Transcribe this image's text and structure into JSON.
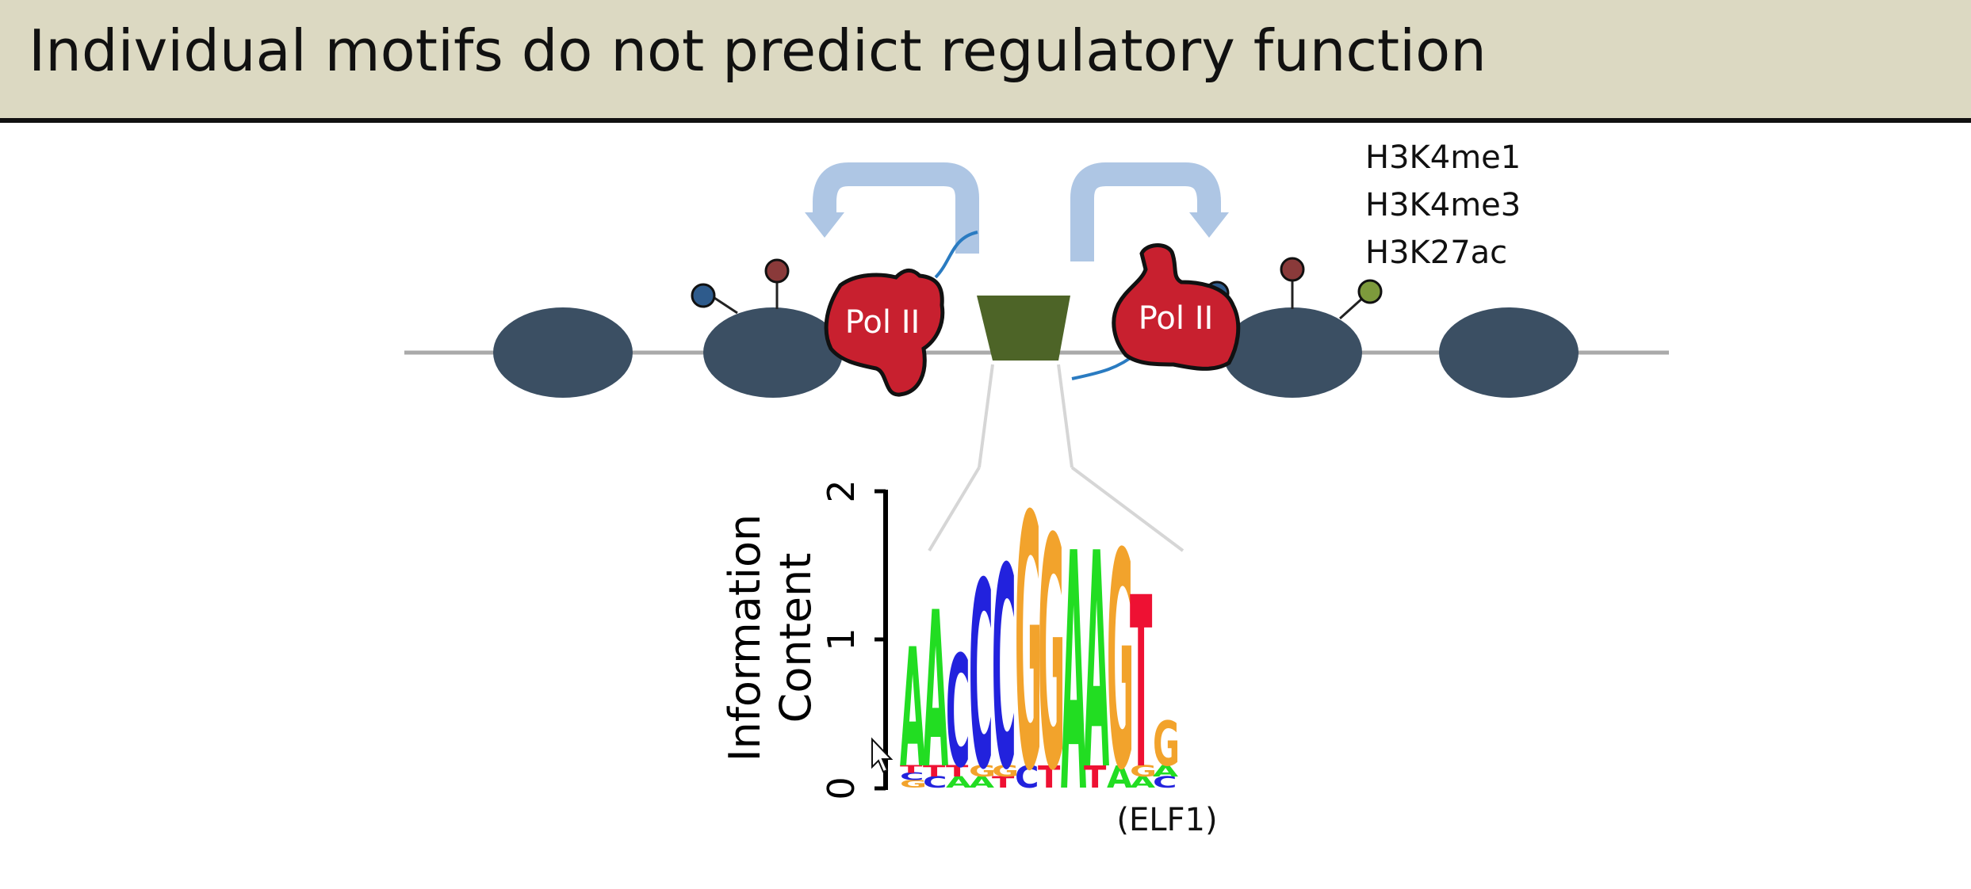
{
  "title": "Individual motifs do not predict regulatory function",
  "histone_marks": [
    "H3K4me1",
    "H3K4me3",
    "H3K27ac"
  ],
  "pol2_label": "Pol II",
  "motif_logo": {
    "y_axis_label_line1": "Information",
    "y_axis_label_line2": "Content",
    "y_ticks": [
      "0",
      "1",
      "2"
    ],
    "ymax": 2,
    "motif_name": "(ELF1)",
    "consensus": "AACCCGGAAGTG",
    "positions": [
      {
        "main": "A",
        "height": 0.95,
        "minor": [
          "T",
          "C",
          "G"
        ]
      },
      {
        "main": "A",
        "height": 1.2,
        "minor": [
          "T",
          "C"
        ]
      },
      {
        "main": "C",
        "height": 0.9,
        "minor": [
          "T",
          "A"
        ]
      },
      {
        "main": "C",
        "height": 1.4,
        "minor": [
          "G",
          "A"
        ]
      },
      {
        "main": "C",
        "height": 1.5,
        "minor": [
          "G",
          "T"
        ]
      },
      {
        "main": "G",
        "height": 1.85,
        "minor": [
          "C"
        ]
      },
      {
        "main": "G",
        "height": 1.7,
        "minor": [
          "T"
        ]
      },
      {
        "main": "A",
        "height": 1.75,
        "minor": []
      },
      {
        "main": "A",
        "height": 1.6,
        "minor": [
          "T"
        ]
      },
      {
        "main": "G",
        "height": 1.6,
        "minor": [
          "A"
        ]
      },
      {
        "main": "T",
        "height": 1.3,
        "minor": [
          "G",
          "A"
        ]
      },
      {
        "main": "G",
        "height": 0.45,
        "minor": [
          "A",
          "C"
        ]
      }
    ],
    "colors": {
      "A": "#22dd22",
      "C": "#2222dd",
      "G": "#f2a32c",
      "T": "#ee1133"
    }
  },
  "colors": {
    "title_bar": "#dcd9c2",
    "nucleosome": "#3b4f63",
    "pol2": "#c8202f",
    "tf": "#4d6427",
    "arrow": "#aec6e4",
    "rna": "#2a7bc1"
  }
}
